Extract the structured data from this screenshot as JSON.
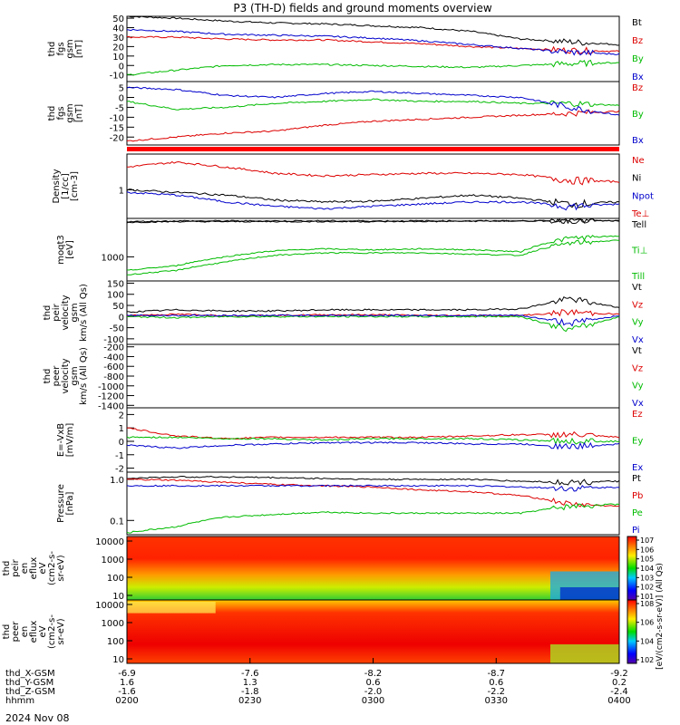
{
  "title": "P3 (TH-D) fields and ground moments overview",
  "date": "2024 Nov 08",
  "chart_data": [
    {
      "type": "line",
      "panel": "fgs-gsm-btot",
      "ylabel": [
        "thd",
        "fgs",
        "gsm",
        "[nT]"
      ],
      "yticks": [
        -10,
        0,
        10,
        20,
        30,
        40,
        50
      ],
      "ylim": [
        -17,
        52
      ],
      "legend": [
        {
          "name": "Bt",
          "color": "#000000"
        },
        {
          "name": "Bz",
          "color": "#dd0000"
        },
        {
          "name": "By",
          "color": "#00bb00"
        },
        {
          "name": "Bx",
          "color": "#0000cc"
        }
      ],
      "series": [
        {
          "name": "Bt",
          "values": [
            52,
            50,
            47,
            45,
            44,
            42,
            40,
            36,
            28,
            25,
            22
          ]
        },
        {
          "name": "Bz",
          "values": [
            30,
            30,
            28,
            27,
            27,
            25,
            23,
            20,
            18,
            16,
            15
          ]
        },
        {
          "name": "By",
          "values": [
            -10,
            -5,
            0,
            1,
            1,
            0,
            -1,
            -2,
            0,
            2,
            3
          ]
        },
        {
          "name": "Bx",
          "values": [
            38,
            36,
            33,
            32,
            31,
            29,
            26,
            22,
            18,
            14,
            12
          ]
        }
      ]
    },
    {
      "type": "line",
      "panel": "fgs-gsm",
      "ylabel": [
        "thd",
        "fgs",
        "gsm",
        "[nT]"
      ],
      "yticks": [
        -20,
        -15,
        -10,
        -5,
        0,
        5
      ],
      "ylim": [
        -24,
        8
      ],
      "legend": [
        {
          "name": "Bz",
          "color": "#dd0000"
        },
        {
          "name": "By",
          "color": "#00bb00"
        },
        {
          "name": "Bx",
          "color": "#0000cc"
        }
      ],
      "series": [
        {
          "name": "Bz",
          "values": [
            -22,
            -20,
            -18,
            -17,
            -14,
            -12,
            -11,
            -10,
            -9,
            -8,
            -7
          ]
        },
        {
          "name": "By",
          "values": [
            -2,
            -6,
            -5,
            -3,
            -2,
            -1,
            -2,
            -2,
            -3,
            -3,
            -4
          ]
        },
        {
          "name": "Bx",
          "values": [
            5,
            4,
            1,
            0,
            2,
            3,
            2,
            1,
            0,
            -5,
            -9
          ]
        }
      ]
    },
    {
      "type": "line",
      "panel": "density",
      "ylabel": [
        "Density",
        "[1/cc]",
        "[cm-3]"
      ],
      "yticks_label": [
        "1"
      ],
      "scale": "log",
      "legend": [
        {
          "name": "Ne",
          "color": "#dd0000"
        },
        {
          "name": "Ni",
          "color": "#000000"
        },
        {
          "name": "Npot",
          "color": "#0000cc"
        },
        {
          "name": "Te⊥",
          "color": "#dd0000"
        }
      ],
      "series": [
        {
          "name": "Ne",
          "values": [
            2.6,
            3.2,
            2.6,
            2.0,
            1.8,
            1.9,
            2.0,
            2.0,
            1.9,
            1.5,
            1.4
          ]
        },
        {
          "name": "Ni",
          "values": [
            1.0,
            0.9,
            0.8,
            0.65,
            0.6,
            0.62,
            0.7,
            0.8,
            0.7,
            0.55,
            0.6
          ]
        },
        {
          "name": "Npot",
          "values": [
            0.9,
            0.8,
            0.6,
            0.5,
            0.45,
            0.5,
            0.55,
            0.6,
            0.6,
            0.5,
            0.55
          ]
        }
      ]
    },
    {
      "type": "line",
      "panel": "temperature",
      "ylabel": [
        "moqt3",
        "[eV]"
      ],
      "yticks_label": [
        "1000"
      ],
      "scale": "log",
      "legend": [
        {
          "name": "Tell",
          "color": "#000000"
        },
        {
          "name": "Ti⊥",
          "color": "#00bb00"
        },
        {
          "name": "Till",
          "color": "#00bb00"
        }
      ],
      "series": [
        {
          "name": "Te⊥",
          "values": [
            10000,
            10500,
            10500,
            10500,
            10500,
            10500,
            10600,
            10800,
            11000,
            11000,
            11000
          ]
        },
        {
          "name": "Tell",
          "values": [
            10500,
            11000,
            11000,
            11000,
            11000,
            11000,
            11000,
            11000,
            11000,
            11000,
            11000
          ]
        },
        {
          "name": "Ti⊥",
          "values": [
            400,
            550,
            1000,
            1500,
            1700,
            1600,
            1700,
            1600,
            1400,
            3500,
            4000
          ]
        },
        {
          "name": "Till",
          "values": [
            300,
            400,
            700,
            1100,
            1300,
            1300,
            1300,
            1200,
            1100,
            2500,
            3000
          ]
        }
      ]
    },
    {
      "type": "line",
      "panel": "peir-velocity",
      "ylabel": [
        "thd",
        "peir",
        "velocity",
        "gsm",
        "km/s (All Qs)"
      ],
      "yticks": [
        -100,
        -50,
        0,
        50,
        100,
        150
      ],
      "ylim": [
        -125,
        160
      ],
      "legend": [
        {
          "name": "Vt",
          "color": "#000000"
        },
        {
          "name": "Vz",
          "color": "#dd0000"
        },
        {
          "name": "Vy",
          "color": "#00bb00"
        },
        {
          "name": "Vx",
          "color": "#0000cc"
        }
      ],
      "series": [
        {
          "name": "Vt",
          "values": [
            20,
            30,
            25,
            25,
            30,
            30,
            30,
            30,
            35,
            80,
            40
          ]
        },
        {
          "name": "Vz",
          "values": [
            5,
            10,
            5,
            5,
            8,
            8,
            5,
            5,
            5,
            20,
            10
          ]
        },
        {
          "name": "Vy",
          "values": [
            0,
            -5,
            0,
            0,
            0,
            0,
            0,
            0,
            0,
            -60,
            0
          ]
        },
        {
          "name": "Vx",
          "values": [
            5,
            5,
            5,
            5,
            5,
            5,
            5,
            5,
            5,
            -30,
            5
          ]
        }
      ]
    },
    {
      "type": "line",
      "panel": "peer-velocity",
      "ylabel": [
        "thd",
        "peer",
        "velocity",
        "gsm",
        "km/s (All Qs)"
      ],
      "yticks": [
        -1400,
        -1200,
        -1000,
        -800,
        -600,
        -400,
        -200
      ],
      "ylim": [
        -1450,
        -150
      ],
      "legend": [
        {
          "name": "Vt",
          "color": "#000000"
        },
        {
          "name": "Vz",
          "color": "#dd0000"
        },
        {
          "name": "Vy",
          "color": "#00bb00"
        },
        {
          "name": "Vx",
          "color": "#0000cc"
        }
      ],
      "series": []
    },
    {
      "type": "line",
      "panel": "e-field",
      "ylabel": [
        "E=-VxB",
        "[mV/m]"
      ],
      "yticks": [
        -2,
        -1,
        0,
        1,
        2
      ],
      "ylim": [
        -2.3,
        2.5
      ],
      "legend": [
        {
          "name": "Ez",
          "color": "#dd0000"
        },
        {
          "name": "Ey",
          "color": "#00bb00"
        },
        {
          "name": "Ex",
          "color": "#0000cc"
        }
      ],
      "series": [
        {
          "name": "Ez",
          "values": [
            1.0,
            0.4,
            0.2,
            0.3,
            0.3,
            0.3,
            0.3,
            0.4,
            0.5,
            0.5,
            0.3
          ]
        },
        {
          "name": "Ey",
          "values": [
            0.3,
            0.3,
            0.2,
            0.2,
            0.1,
            0.2,
            0.2,
            0.2,
            0.1,
            0.0,
            0.0
          ]
        },
        {
          "name": "Ex",
          "values": [
            -0.3,
            -0.5,
            -0.3,
            -0.2,
            -0.1,
            -0.1,
            -0.1,
            -0.2,
            -0.2,
            -0.4,
            -0.2
          ]
        }
      ]
    },
    {
      "type": "line",
      "panel": "pressure",
      "ylabel": [
        "Pressure",
        "[nPa]"
      ],
      "yticks_label": [
        "1.0",
        "0.1"
      ],
      "scale": "log",
      "legend": [
        {
          "name": "Pt",
          "color": "#000000"
        },
        {
          "name": "Pb",
          "color": "#dd0000"
        },
        {
          "name": "Pe",
          "color": "#00bb00"
        },
        {
          "name": "Pi",
          "color": "#0000cc"
        }
      ],
      "series": [
        {
          "name": "Pt",
          "values": [
            1.05,
            1.15,
            1.15,
            1.1,
            1.05,
            1.0,
            1.0,
            1.0,
            0.9,
            0.85,
            0.9
          ]
        },
        {
          "name": "Pb",
          "values": [
            1.0,
            0.95,
            0.85,
            0.75,
            0.7,
            0.65,
            0.55,
            0.5,
            0.4,
            0.25,
            0.22
          ]
        },
        {
          "name": "Pe",
          "values": [
            0.05,
            0.07,
            0.12,
            0.14,
            0.16,
            0.15,
            0.15,
            0.15,
            0.15,
            0.22,
            0.25
          ]
        },
        {
          "name": "Pi",
          "values": [
            0.7,
            0.7,
            0.7,
            0.7,
            0.7,
            0.7,
            0.7,
            0.7,
            0.65,
            0.6,
            0.65
          ]
        }
      ]
    },
    {
      "type": "heatmap",
      "panel": "peir-spectrogram",
      "ylabel": [
        "thd",
        "peir",
        "en",
        "eflux",
        "eV",
        "(cm2-s-",
        "sr-eV)"
      ],
      "yticks_label": [
        "10",
        "100",
        "1000",
        "10000"
      ],
      "colorbar": {
        "label": "[eV/(cm2-s-sr-eV)] (All Qs)",
        "ticks": [
          "10^1",
          "10^2",
          "10^3",
          "10^4",
          "10^5",
          "10^6",
          "10^7"
        ]
      }
    },
    {
      "type": "heatmap",
      "panel": "peer-spectrogram",
      "ylabel": [
        "thd",
        "peer",
        "en",
        "eflux",
        "eV",
        "(cm2-s-",
        "sr-eV)"
      ],
      "yticks_label": [
        "10",
        "100",
        "1000",
        "10000"
      ],
      "colorbar": {
        "label": "[eV/(cm2-s-sr-eV)] (All Qs)",
        "ticks": [
          "10^2",
          "10^4",
          "10^6",
          "10^8"
        ]
      }
    }
  ],
  "x_axis": {
    "rows": [
      {
        "label": "thd_X-GSM",
        "values": [
          "-6.9",
          "-7.6",
          "-8.2",
          "-8.7",
          "-9.2"
        ]
      },
      {
        "label": "thd_Y-GSM",
        "values": [
          "1.6",
          "1.3",
          "0.6",
          "0.6",
          "0.2"
        ]
      },
      {
        "label": "thd_Z-GSM",
        "values": [
          "-1.6",
          "-1.8",
          "-2.0",
          "-2.2",
          "-2.4"
        ]
      },
      {
        "label": "hhmm",
        "values": [
          "0200",
          "0230",
          "0300",
          "0330",
          "0400"
        ]
      }
    ]
  }
}
